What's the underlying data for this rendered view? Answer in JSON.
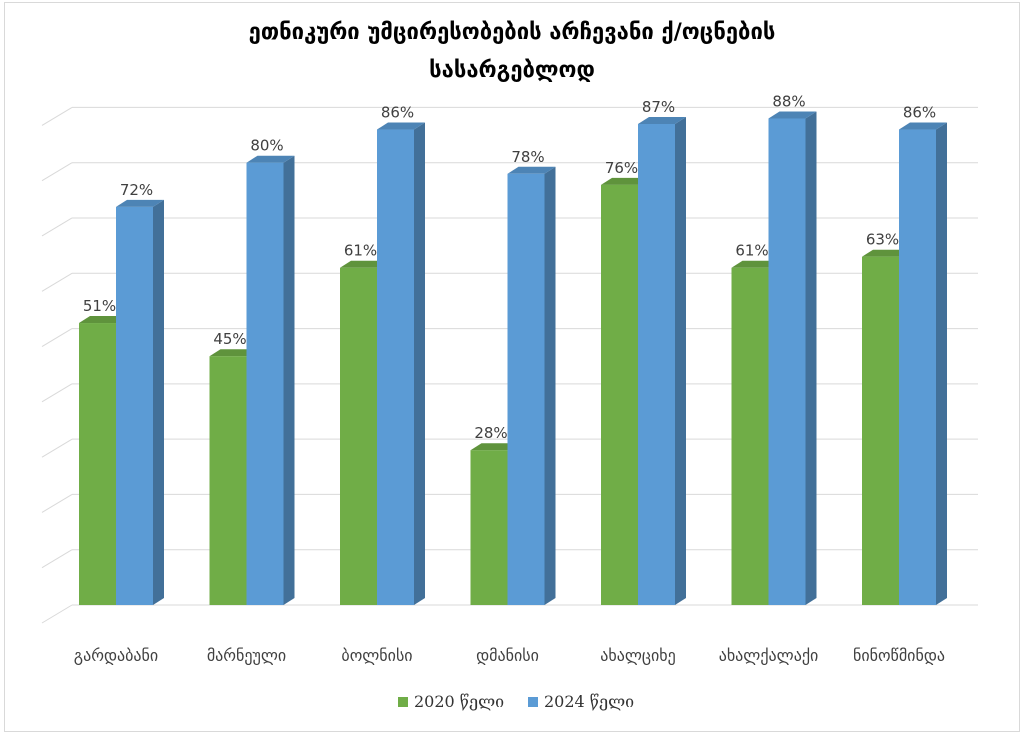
{
  "chart_data": {
    "type": "bar",
    "title_line1": "ეთნიკური უმცირესობების არჩევანი ქ/ოცნების",
    "title_line2": "სასარგებლოდ",
    "categories": [
      "გარდაბანი",
      "მარნეული",
      "ბოლნისი",
      "დმანისი",
      "ახალციხე",
      "ახალქალაქი",
      "ნინოწმინდა"
    ],
    "series": [
      {
        "name": "2020 წელი",
        "color": "#70ad47",
        "values": [
          51,
          45,
          61,
          28,
          76,
          61,
          63
        ],
        "labels": [
          "51%",
          "45%",
          "61%",
          "28%",
          "76%",
          "61%",
          "63%"
        ]
      },
      {
        "name": "2024 წელი",
        "color": "#5b9bd5",
        "values": [
          72,
          80,
          86,
          78,
          87,
          88,
          86
        ],
        "labels": [
          "72%",
          "80%",
          "86%",
          "78%",
          "87%",
          "88%",
          "86%"
        ]
      }
    ],
    "ylim": [
      0,
      90
    ],
    "grid": true,
    "legend_position": "bottom"
  }
}
